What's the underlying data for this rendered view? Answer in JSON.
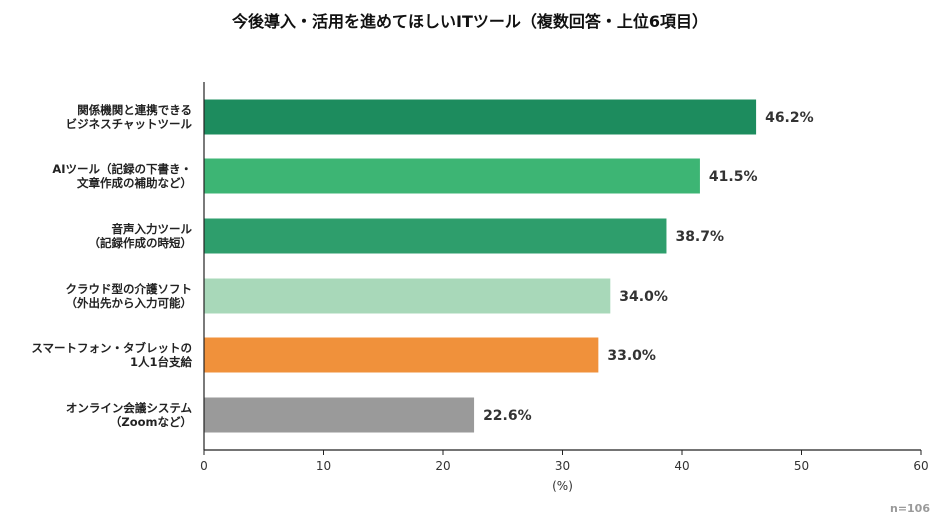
{
  "chart_data": {
    "type": "bar",
    "orientation": "horizontal",
    "title": "今後導入・活用を進めてほしいITツール（複数回答・上位6項目）",
    "xlabel": "(%)",
    "ylabel": "",
    "xlim": [
      0,
      60
    ],
    "xticks": [
      "0",
      "10",
      "20",
      "30",
      "40",
      "50",
      "60"
    ],
    "categories": [
      [
        "関係機関と連携できる",
        "ビジネスチャットツール"
      ],
      [
        "AIツール（記録の下書き・",
        "文章作成の補助など）"
      ],
      [
        "音声入力ツール",
        "（記録作成の時短）"
      ],
      [
        "クラウド型の介護ソフト",
        "（外出先から入力可能）"
      ],
      [
        "スマートフォン・タブレットの",
        "1人1台支給"
      ],
      [
        "オンライン会議システム",
        "（Zoomなど）"
      ]
    ],
    "values": [
      46.2,
      41.5,
      38.7,
      34.0,
      33.0,
      22.6
    ],
    "value_labels": [
      "46.2%",
      "41.5%",
      "38.7%",
      "34.0%",
      "33.0%",
      "22.6%"
    ],
    "colors": [
      "#1d8c5e",
      "#3db574",
      "#2e9e6c",
      "#a8d8b9",
      "#f0913b",
      "#9a9a9a"
    ],
    "grid": false,
    "note": "n=106"
  }
}
